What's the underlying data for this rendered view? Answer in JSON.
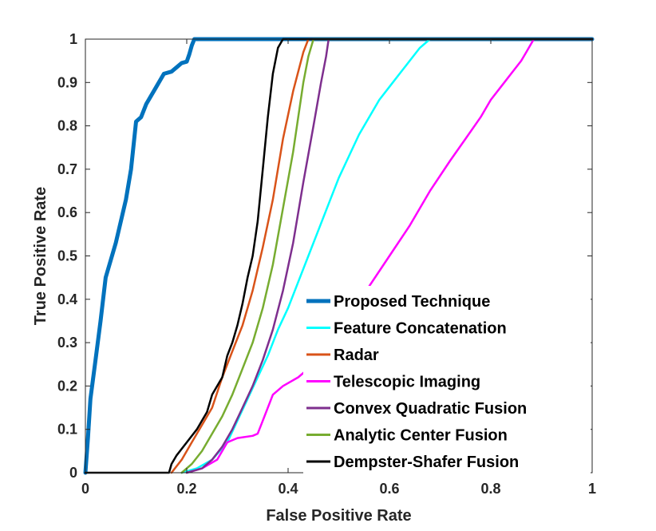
{
  "chart_data": {
    "type": "line",
    "title": "",
    "xlabel": "False Positive Rate",
    "ylabel": "True Positive Rate",
    "xlim": [
      0,
      1
    ],
    "ylim": [
      0,
      1
    ],
    "xticks": [
      0,
      0.2,
      0.4,
      0.6,
      0.8,
      1
    ],
    "yticks": [
      0,
      0.1,
      0.2,
      0.3,
      0.4,
      0.5,
      0.6,
      0.7,
      0.8,
      0.9,
      1
    ],
    "xtick_labels": [
      "0",
      "0.2",
      "0.4",
      "0.6",
      "0.8",
      "1"
    ],
    "ytick_labels": [
      "0",
      "0.1",
      "0.2",
      "0.3",
      "0.4",
      "0.5",
      "0.6",
      "0.7",
      "0.8",
      "0.9",
      "1"
    ],
    "grid": false,
    "legend_position": "bottom-right",
    "series": [
      {
        "name": "Proposed Technique",
        "color": "#0072BD",
        "width": 5,
        "points": [
          [
            0,
            0
          ],
          [
            0.005,
            0.08
          ],
          [
            0.01,
            0.17
          ],
          [
            0.02,
            0.26
          ],
          [
            0.03,
            0.35
          ],
          [
            0.04,
            0.45
          ],
          [
            0.06,
            0.53
          ],
          [
            0.08,
            0.63
          ],
          [
            0.09,
            0.7
          ],
          [
            0.1,
            0.81
          ],
          [
            0.11,
            0.82
          ],
          [
            0.12,
            0.85
          ],
          [
            0.14,
            0.89
          ],
          [
            0.155,
            0.92
          ],
          [
            0.17,
            0.925
          ],
          [
            0.18,
            0.935
          ],
          [
            0.19,
            0.945
          ],
          [
            0.2,
            0.948
          ],
          [
            0.205,
            0.965
          ],
          [
            0.21,
            0.985
          ],
          [
            0.215,
            1
          ],
          [
            1,
            1
          ]
        ]
      },
      {
        "name": "Feature Concatenation",
        "color": "#00FFFF",
        "width": 2.5,
        "points": [
          [
            0.19,
            0
          ],
          [
            0.22,
            0.01
          ],
          [
            0.25,
            0.03
          ],
          [
            0.28,
            0.07
          ],
          [
            0.3,
            0.12
          ],
          [
            0.32,
            0.17
          ],
          [
            0.34,
            0.22
          ],
          [
            0.36,
            0.27
          ],
          [
            0.38,
            0.33
          ],
          [
            0.4,
            0.38
          ],
          [
            0.42,
            0.44
          ],
          [
            0.44,
            0.5
          ],
          [
            0.46,
            0.56
          ],
          [
            0.48,
            0.62
          ],
          [
            0.5,
            0.68
          ],
          [
            0.52,
            0.73
          ],
          [
            0.54,
            0.78
          ],
          [
            0.56,
            0.82
          ],
          [
            0.58,
            0.86
          ],
          [
            0.6,
            0.89
          ],
          [
            0.62,
            0.92
          ],
          [
            0.64,
            0.95
          ],
          [
            0.66,
            0.98
          ],
          [
            0.68,
            1
          ],
          [
            1,
            1
          ]
        ]
      },
      {
        "name": "Radar",
        "color": "#D95319",
        "width": 2.5,
        "points": [
          [
            0.17,
            0
          ],
          [
            0.19,
            0.03
          ],
          [
            0.21,
            0.07
          ],
          [
            0.23,
            0.11
          ],
          [
            0.25,
            0.15
          ],
          [
            0.27,
            0.22
          ],
          [
            0.29,
            0.28
          ],
          [
            0.31,
            0.34
          ],
          [
            0.33,
            0.42
          ],
          [
            0.35,
            0.52
          ],
          [
            0.37,
            0.63
          ],
          [
            0.39,
            0.77
          ],
          [
            0.41,
            0.88
          ],
          [
            0.43,
            0.97
          ],
          [
            0.44,
            1
          ],
          [
            1,
            1
          ]
        ]
      },
      {
        "name": "Telescopic Imaging",
        "color": "#FF00FF",
        "width": 2.5,
        "points": [
          [
            0.2,
            0
          ],
          [
            0.23,
            0.01
          ],
          [
            0.26,
            0.03
          ],
          [
            0.28,
            0.07
          ],
          [
            0.3,
            0.08
          ],
          [
            0.33,
            0.085
          ],
          [
            0.34,
            0.09
          ],
          [
            0.35,
            0.12
          ],
          [
            0.36,
            0.15
          ],
          [
            0.37,
            0.18
          ],
          [
            0.39,
            0.2
          ],
          [
            0.42,
            0.22
          ],
          [
            0.44,
            0.24
          ],
          [
            0.47,
            0.28
          ],
          [
            0.5,
            0.33
          ],
          [
            0.53,
            0.38
          ],
          [
            0.56,
            0.43
          ],
          [
            0.6,
            0.5
          ],
          [
            0.64,
            0.57
          ],
          [
            0.68,
            0.65
          ],
          [
            0.72,
            0.72
          ],
          [
            0.75,
            0.77
          ],
          [
            0.78,
            0.82
          ],
          [
            0.8,
            0.86
          ],
          [
            0.82,
            0.89
          ],
          [
            0.84,
            0.92
          ],
          [
            0.86,
            0.95
          ],
          [
            0.87,
            0.97
          ],
          [
            0.88,
            0.99
          ],
          [
            0.885,
            1
          ],
          [
            1,
            1
          ]
        ]
      },
      {
        "name": "Convex Quadratic Fusion",
        "color": "#7E2F8E",
        "width": 2.5,
        "points": [
          [
            0.2,
            0
          ],
          [
            0.23,
            0.01
          ],
          [
            0.25,
            0.03
          ],
          [
            0.27,
            0.06
          ],
          [
            0.29,
            0.1
          ],
          [
            0.31,
            0.15
          ],
          [
            0.33,
            0.2
          ],
          [
            0.35,
            0.26
          ],
          [
            0.37,
            0.33
          ],
          [
            0.39,
            0.42
          ],
          [
            0.41,
            0.53
          ],
          [
            0.43,
            0.67
          ],
          [
            0.45,
            0.8
          ],
          [
            0.465,
            0.9
          ],
          [
            0.475,
            0.96
          ],
          [
            0.48,
            1
          ],
          [
            1,
            1
          ]
        ]
      },
      {
        "name": "Analytic Center Fusion",
        "color": "#77AC30",
        "width": 2.5,
        "points": [
          [
            0.19,
            0
          ],
          [
            0.21,
            0.02
          ],
          [
            0.23,
            0.05
          ],
          [
            0.25,
            0.09
          ],
          [
            0.27,
            0.13
          ],
          [
            0.29,
            0.18
          ],
          [
            0.31,
            0.24
          ],
          [
            0.33,
            0.3
          ],
          [
            0.35,
            0.38
          ],
          [
            0.37,
            0.48
          ],
          [
            0.39,
            0.61
          ],
          [
            0.41,
            0.74
          ],
          [
            0.42,
            0.82
          ],
          [
            0.43,
            0.9
          ],
          [
            0.44,
            0.96
          ],
          [
            0.45,
            1
          ],
          [
            1,
            1
          ]
        ]
      },
      {
        "name": "Dempster-Shafer Fusion",
        "color": "#000000",
        "width": 2.5,
        "points": [
          [
            0,
            0
          ],
          [
            0.165,
            0
          ],
          [
            0.17,
            0.02
          ],
          [
            0.18,
            0.04
          ],
          [
            0.2,
            0.07
          ],
          [
            0.22,
            0.1
          ],
          [
            0.24,
            0.14
          ],
          [
            0.25,
            0.18
          ],
          [
            0.27,
            0.22
          ],
          [
            0.28,
            0.27
          ],
          [
            0.29,
            0.3
          ],
          [
            0.3,
            0.34
          ],
          [
            0.31,
            0.39
          ],
          [
            0.32,
            0.45
          ],
          [
            0.33,
            0.5
          ],
          [
            0.34,
            0.58
          ],
          [
            0.35,
            0.7
          ],
          [
            0.36,
            0.82
          ],
          [
            0.37,
            0.92
          ],
          [
            0.38,
            0.98
          ],
          [
            0.39,
            1
          ],
          [
            1,
            1
          ]
        ]
      }
    ]
  }
}
